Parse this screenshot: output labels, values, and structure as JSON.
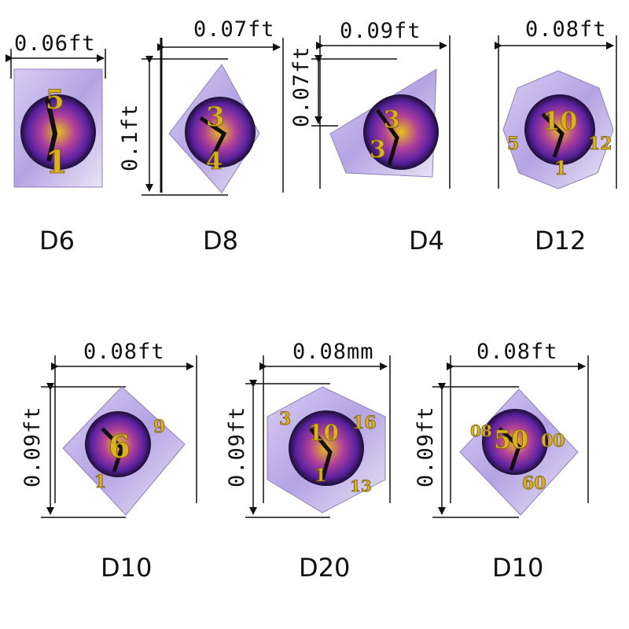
{
  "dice": [
    {
      "name": "D6",
      "width_label": "0.06ft"
    },
    {
      "name": "D8",
      "width_label": "0.07ft",
      "height_label": "0.1ft"
    },
    {
      "name": "D4",
      "width_label": "0.09ft",
      "height_label": "0.07ft"
    },
    {
      "name": "D12",
      "width_label": "0.08ft"
    },
    {
      "name": "D10",
      "width_label": "0.08ft",
      "height_label": "0.09ft"
    },
    {
      "name": "D20",
      "width_label": "0.08mm",
      "height_label": "0.09ft"
    },
    {
      "name": "D10",
      "width_label": "0.08ft",
      "height_label": "0.09ft"
    }
  ],
  "face_numbers": {
    "d6": [
      "5",
      "1"
    ],
    "d8": [
      "3",
      "4"
    ],
    "d4": [
      "3",
      "3"
    ],
    "d12": [
      "10",
      "5",
      "12",
      "1"
    ],
    "d10_a": [
      "6",
      "9",
      "1"
    ],
    "d20": [
      "10",
      "3",
      "16",
      "1",
      "13"
    ],
    "d10_b": [
      "50",
      "00",
      "08",
      "60"
    ]
  },
  "colors": {
    "gold": "#d9b21d",
    "purple_body": "#b9a8e6",
    "eye_purple": "#6b2ea8",
    "eye_yellow": "#e8c21a"
  }
}
